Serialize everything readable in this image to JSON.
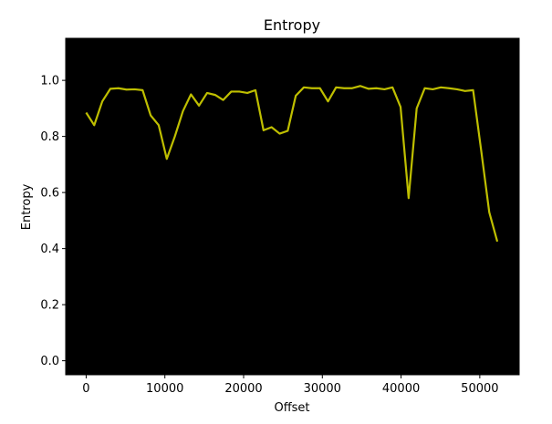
{
  "chart_data": {
    "type": "line",
    "title": "Entropy",
    "xlabel": "Offset",
    "ylabel": "Entropy",
    "xlim": [
      -2600,
      55000
    ],
    "ylim": [
      -0.05,
      1.15
    ],
    "x_ticks": [
      0,
      10000,
      20000,
      30000,
      40000,
      50000
    ],
    "x_tick_labels": [
      "0",
      "10000",
      "20000",
      "30000",
      "40000",
      "50000"
    ],
    "y_ticks": [
      0.0,
      0.2,
      0.4,
      0.6,
      0.8,
      1.0
    ],
    "y_tick_labels": [
      "0.0",
      "0.2",
      "0.4",
      "0.6",
      "0.8",
      "1.0"
    ],
    "grid": false,
    "background_color": "#000000",
    "series": [
      {
        "color": "#bfbf00",
        "x": [
          0,
          1024,
          2048,
          3072,
          4096,
          5120,
          6144,
          7168,
          8192,
          9216,
          10240,
          11264,
          12288,
          13312,
          14336,
          15360,
          16384,
          17408,
          18432,
          19456,
          20480,
          21504,
          22528,
          23552,
          24576,
          25600,
          26624,
          27648,
          28672,
          29696,
          30720,
          31744,
          32768,
          33792,
          34816,
          35840,
          36864,
          37888,
          38912,
          39936,
          40960,
          41984,
          43008,
          44032,
          45056,
          46080,
          47104,
          48128,
          49152,
          50176,
          51200,
          52224
        ],
        "y": [
          0.885,
          0.84,
          0.925,
          0.97,
          0.972,
          0.967,
          0.968,
          0.965,
          0.875,
          0.84,
          0.72,
          0.8,
          0.89,
          0.95,
          0.91,
          0.955,
          0.948,
          0.93,
          0.96,
          0.96,
          0.955,
          0.965,
          0.822,
          0.833,
          0.81,
          0.82,
          0.945,
          0.975,
          0.972,
          0.972,
          0.925,
          0.975,
          0.972,
          0.972,
          0.98,
          0.97,
          0.972,
          0.968,
          0.975,
          0.905,
          0.58,
          0.9,
          0.972,
          0.968,
          0.975,
          0.972,
          0.968,
          0.962,
          0.965,
          0.75,
          0.53,
          0.425
        ]
      }
    ]
  }
}
